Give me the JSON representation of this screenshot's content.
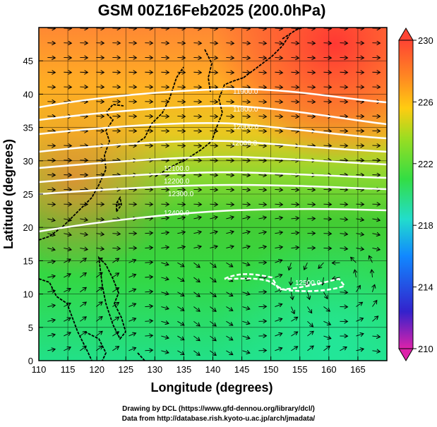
{
  "title": "GSM 00Z16Feb2025 (200.0hPa)",
  "xlabel": "Longitude (degrees)",
  "ylabel": "Latitude  (degrees)",
  "x_ticks": [
    "110",
    "115",
    "120",
    "125",
    "130",
    "135",
    "140",
    "145",
    "150",
    "155",
    "160",
    "165"
  ],
  "y_ticks": [
    "0",
    "5",
    "10",
    "15",
    "20",
    "25",
    "30",
    "35",
    "40",
    "45"
  ],
  "colorbar": {
    "ticks": [
      "230",
      "226",
      "222",
      "218",
      "214",
      "210"
    ],
    "colors": [
      "#dd22aa",
      "#2222cc",
      "#1188ff",
      "#22ddcc",
      "#33dd44",
      "#99dd22",
      "#ffcc11",
      "#ff8822",
      "#ff4433"
    ]
  },
  "contour_labels": [
    "12000.0",
    "12000.0",
    "12100.0",
    "12200.0",
    "12300.0",
    "12400.0",
    "11900.0",
    "11800.0",
    "12500.0"
  ],
  "credits": {
    "line1": "Drawing by DCL (https://www.gfd-dennou.org/library/dcl/)",
    "line2": "Data from http://database.rish.kyoto-u.ac.jp/arch/jmadata/"
  }
}
